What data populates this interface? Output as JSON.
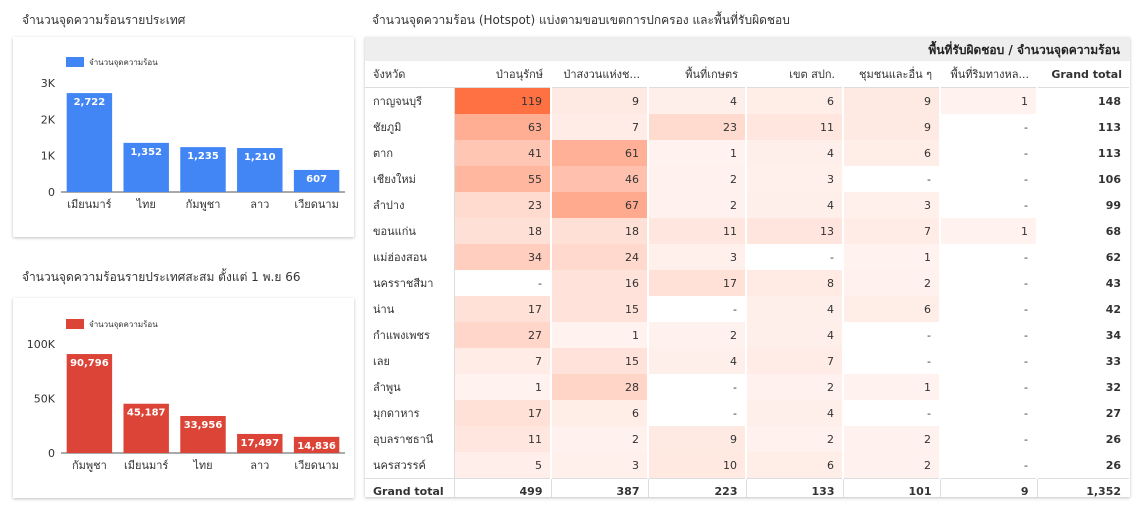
{
  "chart1": {
    "section_title": "จำนวนจุดความร้อนรายประเทศ",
    "chart_data": {
      "type": "bar",
      "categories": [
        "เมียนมาร์",
        "ไทย",
        "กัมพูชา",
        "ลาว",
        "เวียดนาม"
      ],
      "series": [
        {
          "name": "จำนวนจุดความร้อน",
          "values": [
            2722,
            1352,
            1235,
            1210,
            607
          ]
        }
      ],
      "data_labels": [
        "2,722",
        "1,352",
        "1,235",
        "1,210",
        "607"
      ],
      "yticks": [
        0,
        1000,
        2000,
        3000
      ],
      "ytick_labels": [
        "0",
        "1K",
        "2K",
        "3K"
      ],
      "ylim": [
        0,
        3000
      ],
      "color": "#4285f4",
      "legend": "top-left"
    }
  },
  "chart2": {
    "section_title": "จำนวนจุดความร้อนรายประเทศสะสม ตั้งแต่ 1 พ.ย 66",
    "chart_data": {
      "type": "bar",
      "categories": [
        "กัมพูชา",
        "เมียนมาร์",
        "ไทย",
        "ลาว",
        "เวียดนาม"
      ],
      "series": [
        {
          "name": "จำนวนจุดความร้อน",
          "values": [
            90796,
            45187,
            33956,
            17497,
            14836
          ]
        }
      ],
      "data_labels": [
        "90,796",
        "45,187",
        "33,956",
        "17,497",
        "14,836"
      ],
      "yticks": [
        0,
        50000,
        100000
      ],
      "ytick_labels": [
        "0",
        "50K",
        "100K"
      ],
      "ylim": [
        0,
        100000
      ],
      "color": "#db4437",
      "legend": "top-left"
    }
  },
  "table": {
    "section_title": "จำนวนจุดความร้อน (Hotspot) แบ่งตามขอบเขตการปกครอง และพื้นที่รับผิดชอบ",
    "header_bar": "พื้นที่รับผิดชอบ / จำนวนจุดความร้อน",
    "chart_data": {
      "type": "table",
      "columns": [
        "จังหวัด",
        "ป่าอนุรักษ์",
        "ป่าสงวนแห่งช...",
        "พื้นที่เกษตร",
        "เขต สปก.",
        "ชุมชนและอื่น ๆ",
        "พื้นที่ริมทางหล...",
        "Grand total"
      ],
      "rows": [
        [
          "กาญจนบุรี",
          "119",
          "9",
          "4",
          "6",
          "9",
          "1",
          "148"
        ],
        [
          "ชัยภูมิ",
          "63",
          "7",
          "23",
          "11",
          "9",
          "-",
          "113"
        ],
        [
          "ตาก",
          "41",
          "61",
          "1",
          "4",
          "6",
          "-",
          "113"
        ],
        [
          "เชียงใหม่",
          "55",
          "46",
          "2",
          "3",
          "-",
          "-",
          "106"
        ],
        [
          "ลำปาง",
          "23",
          "67",
          "2",
          "4",
          "3",
          "-",
          "99"
        ],
        [
          "ขอนแก่น",
          "18",
          "18",
          "11",
          "13",
          "7",
          "1",
          "68"
        ],
        [
          "แม่ฮ่องสอน",
          "34",
          "24",
          "3",
          "-",
          "1",
          "-",
          "62"
        ],
        [
          "นครราชสีมา",
          "-",
          "16",
          "17",
          "8",
          "2",
          "-",
          "43"
        ],
        [
          "น่าน",
          "17",
          "15",
          "-",
          "4",
          "6",
          "-",
          "42"
        ],
        [
          "กำแพงเพชร",
          "27",
          "1",
          "2",
          "4",
          "-",
          "-",
          "34"
        ],
        [
          "เลย",
          "7",
          "15",
          "4",
          "7",
          "-",
          "-",
          "33"
        ],
        [
          "ลำพูน",
          "1",
          "28",
          "-",
          "2",
          "1",
          "-",
          "32"
        ],
        [
          "มุกดาหาร",
          "17",
          "6",
          "-",
          "4",
          "-",
          "-",
          "27"
        ],
        [
          "อุบลราชธานี",
          "11",
          "2",
          "9",
          "2",
          "2",
          "-",
          "26"
        ],
        [
          "นครสวรรค์",
          "5",
          "3",
          "10",
          "6",
          "2",
          "-",
          "26"
        ]
      ],
      "grand_total": [
        "Grand total",
        "499",
        "387",
        "223",
        "133",
        "101",
        "9",
        "1,352"
      ],
      "heat_color": "#ff7043"
    }
  }
}
